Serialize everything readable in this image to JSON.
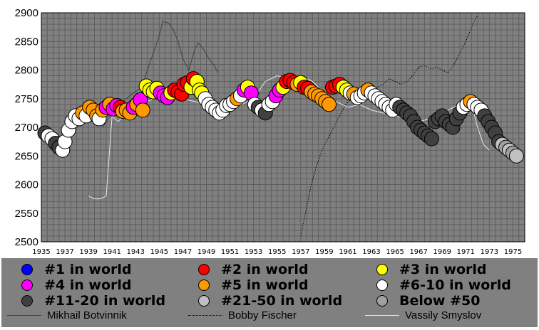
{
  "chart_data": {
    "type": "scatter",
    "ylim": [
      2500,
      2900
    ],
    "yticks": [
      "2900",
      "2850",
      "2800",
      "2750",
      "2700",
      "2650",
      "2600",
      "2550",
      "2500"
    ],
    "xlim": [
      1935,
      1976
    ],
    "xticks": [
      "1935",
      "1937",
      "1939",
      "1941",
      "1943",
      "1945",
      "1947",
      "1949",
      "1951",
      "1953",
      "1955",
      "1957",
      "1959",
      "1961",
      "1963",
      "1965",
      "1967",
      "1969",
      "1971",
      "1973",
      "1975"
    ],
    "grid": true,
    "legend_position": "bottom",
    "rank_categories": [
      {
        "key": "r1",
        "label": "#1 in world",
        "color": "#0000ff"
      },
      {
        "key": "r2",
        "label": "#2 in world",
        "color": "#ff0000"
      },
      {
        "key": "r3",
        "label": "#3 in world",
        "color": "#ffff00"
      },
      {
        "key": "r4",
        "label": "#4 in world",
        "color": "#ff00ff"
      },
      {
        "key": "r5",
        "label": "#5 in world",
        "color": "#ff9900"
      },
      {
        "key": "r610",
        "label": "#6-10 in world",
        "color": "#ffffff"
      },
      {
        "key": "r1120",
        "label": "#11-20 in world",
        "color": "#404040"
      },
      {
        "key": "r2150",
        "label": "#21-50 in world",
        "color": "#c0c0c0"
      },
      {
        "key": "rb50",
        "label": "Below #50",
        "color": "#a0a0a0"
      }
    ],
    "line_series": [
      {
        "name": "Mikhail Botvinnik",
        "style": "solid",
        "color": "#404040",
        "points": [
          [
            1940.2,
            2700
          ],
          [
            1940.8,
            2720
          ],
          [
            1941.5,
            2740
          ],
          [
            1942.2,
            2750
          ],
          [
            1942.8,
            2760
          ],
          [
            1943.5,
            2770
          ],
          [
            1944,
            2800
          ],
          [
            1944.5,
            2830
          ],
          [
            1945,
            2860
          ],
          [
            1945.3,
            2885
          ],
          [
            1945.8,
            2882
          ],
          [
            1946.2,
            2870
          ],
          [
            1946.6,
            2850
          ],
          [
            1947,
            2820
          ],
          [
            1947.5,
            2800
          ],
          [
            1948,
            2835
          ],
          [
            1948.3,
            2848
          ],
          [
            1948.8,
            2835
          ],
          [
            1949.2,
            2820
          ],
          [
            1949.6,
            2810
          ],
          [
            1950,
            2795
          ]
        ]
      },
      {
        "name": "Bobby Fischer",
        "style": "dotted",
        "color": "#000000",
        "points": [
          [
            1957,
            2510
          ],
          [
            1957.3,
            2540
          ],
          [
            1957.6,
            2570
          ],
          [
            1957.9,
            2600
          ],
          [
            1958.3,
            2630
          ],
          [
            1958.8,
            2660
          ],
          [
            1959.3,
            2680
          ],
          [
            1959.8,
            2700
          ],
          [
            1960.3,
            2720
          ],
          [
            1960.8,
            2740
          ],
          [
            1961.3,
            2750
          ],
          [
            1961.8,
            2760
          ],
          [
            1962.3,
            2760
          ],
          [
            1962.8,
            2755
          ],
          [
            1963.5,
            2770
          ],
          [
            1964,
            2775
          ],
          [
            1964.5,
            2785
          ],
          [
            1965,
            2780
          ],
          [
            1965.5,
            2775
          ],
          [
            1966,
            2780
          ],
          [
            1966.5,
            2790
          ],
          [
            1967,
            2805
          ],
          [
            1967.5,
            2808
          ],
          [
            1968,
            2802
          ],
          [
            1968.5,
            2805
          ],
          [
            1969,
            2800
          ],
          [
            1969.5,
            2795
          ],
          [
            1970,
            2810
          ],
          [
            1970.5,
            2830
          ],
          [
            1971,
            2850
          ],
          [
            1971.4,
            2870
          ],
          [
            1971.7,
            2885
          ],
          [
            1972,
            2895
          ]
        ]
      },
      {
        "name": "Vassily Smyslov",
        "style": "solid",
        "color": "#e8e8e8",
        "points": [
          [
            1939,
            2580
          ],
          [
            1939.5,
            2575
          ],
          [
            1940,
            2575
          ],
          [
            1940.5,
            2580
          ],
          [
            1941,
            2720
          ],
          [
            1941.5,
            2710
          ],
          [
            1942,
            2720
          ],
          [
            1942.5,
            2730
          ],
          [
            1943,
            2740
          ],
          [
            1944,
            2745
          ],
          [
            1945,
            2755
          ],
          [
            1946,
            2765
          ],
          [
            1947,
            2750
          ],
          [
            1948,
            2745
          ],
          [
            1949,
            2740
          ],
          [
            1950,
            2735
          ],
          [
            1951,
            2730
          ],
          [
            1952,
            2740
          ],
          [
            1953,
            2750
          ],
          [
            1954,
            2780
          ],
          [
            1955,
            2790
          ],
          [
            1956,
            2785
          ],
          [
            1957,
            2790
          ],
          [
            1958,
            2780
          ],
          [
            1959,
            2760
          ],
          [
            1960,
            2745
          ],
          [
            1961,
            2735
          ],
          [
            1962,
            2740
          ],
          [
            1963,
            2730
          ],
          [
            1964,
            2725
          ],
          [
            1965,
            2720
          ],
          [
            1966,
            2715
          ],
          [
            1967,
            2710
          ],
          [
            1968,
            2715
          ],
          [
            1969,
            2725
          ],
          [
            1970,
            2735
          ],
          [
            1971,
            2745
          ],
          [
            1971.5,
            2740
          ],
          [
            1972,
            2700
          ],
          [
            1972.5,
            2670
          ],
          [
            1973,
            2660
          ]
        ]
      }
    ],
    "points": [
      [
        1935.3,
        2690,
        "r1120"
      ],
      [
        1935.6,
        2685,
        "r610"
      ],
      [
        1935.9,
        2680,
        "r610"
      ],
      [
        1936.2,
        2672,
        "r1120"
      ],
      [
        1936.5,
        2665,
        "r1120"
      ],
      [
        1936.8,
        2660,
        "r610"
      ],
      [
        1937,
        2675,
        "r610"
      ],
      [
        1937.3,
        2695,
        "r610"
      ],
      [
        1937.6,
        2710,
        "r610"
      ],
      [
        1937.9,
        2720,
        "r610"
      ],
      [
        1938.2,
        2715,
        "r610"
      ],
      [
        1938.5,
        2725,
        "r5"
      ],
      [
        1938.8,
        2720,
        "r610"
      ],
      [
        1939.1,
        2735,
        "r5"
      ],
      [
        1939.4,
        2730,
        "r5"
      ],
      [
        1939.7,
        2720,
        "r5"
      ],
      [
        1939.9,
        2715,
        "r610"
      ],
      [
        1940.2,
        2730,
        "r5"
      ],
      [
        1940.5,
        2735,
        "r4"
      ],
      [
        1940.8,
        2740,
        "r5"
      ],
      [
        1941.1,
        2732,
        "r4"
      ],
      [
        1941.4,
        2738,
        "r4"
      ],
      [
        1941.7,
        2735,
        "r2"
      ],
      [
        1941.9,
        2728,
        "r5"
      ],
      [
        1942.2,
        2730,
        "r5"
      ],
      [
        1942.5,
        2725,
        "r5"
      ],
      [
        1942.8,
        2735,
        "r4"
      ],
      [
        1943.1,
        2740,
        "r5"
      ],
      [
        1943.4,
        2748,
        "r4"
      ],
      [
        1943.6,
        2730,
        "r5"
      ],
      [
        1943.9,
        2772,
        "r3"
      ],
      [
        1944.2,
        2765,
        "r3"
      ],
      [
        1944.5,
        2762,
        "r3"
      ],
      [
        1944.8,
        2768,
        "r3"
      ],
      [
        1945.1,
        2760,
        "r4"
      ],
      [
        1945.4,
        2755,
        "r4"
      ],
      [
        1945.7,
        2752,
        "r4"
      ],
      [
        1946,
        2760,
        "r3"
      ],
      [
        1946.3,
        2765,
        "r2"
      ],
      [
        1946.6,
        2762,
        "r2"
      ],
      [
        1946.9,
        2758,
        "r2"
      ],
      [
        1947.1,
        2775,
        "r2"
      ],
      [
        1947.4,
        2778,
        "r2"
      ],
      [
        1947.7,
        2770,
        "r3"
      ],
      [
        1947.9,
        2785,
        "r2"
      ],
      [
        1948.2,
        2780,
        "r3"
      ],
      [
        1948.4,
        2765,
        "r3"
      ],
      [
        1948.6,
        2760,
        "r3"
      ],
      [
        1948.9,
        2750,
        "r610"
      ],
      [
        1949.2,
        2740,
        "r610"
      ],
      [
        1949.5,
        2735,
        "r610"
      ],
      [
        1949.8,
        2730,
        "r610"
      ],
      [
        1950.1,
        2725,
        "r610"
      ],
      [
        1950.4,
        2730,
        "r610"
      ],
      [
        1950.7,
        2738,
        "r610"
      ],
      [
        1951,
        2740,
        "r610"
      ],
      [
        1951.3,
        2745,
        "r610"
      ],
      [
        1951.6,
        2750,
        "r5"
      ],
      [
        1951.9,
        2755,
        "r610"
      ],
      [
        1952.2,
        2765,
        "r4"
      ],
      [
        1952.5,
        2770,
        "r3"
      ],
      [
        1952.8,
        2760,
        "r4"
      ],
      [
        1953.1,
        2740,
        "r610"
      ],
      [
        1953.4,
        2735,
        "r1120"
      ],
      [
        1953.7,
        2730,
        "r610"
      ],
      [
        1954,
        2725,
        "r1120"
      ],
      [
        1954.3,
        2740,
        "r610"
      ],
      [
        1954.6,
        2745,
        "r610"
      ],
      [
        1954.9,
        2755,
        "r4"
      ],
      [
        1955.2,
        2765,
        "r4"
      ],
      [
        1955.5,
        2770,
        "r3"
      ],
      [
        1955.8,
        2780,
        "r2"
      ],
      [
        1956.1,
        2782,
        "r2"
      ],
      [
        1956.4,
        2778,
        "r2"
      ],
      [
        1956.7,
        2775,
        "r5"
      ],
      [
        1957,
        2778,
        "r3"
      ],
      [
        1957.3,
        2770,
        "r2"
      ],
      [
        1957.6,
        2768,
        "r2"
      ],
      [
        1957.9,
        2762,
        "r5"
      ],
      [
        1958.2,
        2758,
        "r5"
      ],
      [
        1958.5,
        2755,
        "r5"
      ],
      [
        1958.8,
        2750,
        "r5"
      ],
      [
        1959.1,
        2745,
        "r5"
      ],
      [
        1959.4,
        2740,
        "r5"
      ],
      [
        1959.7,
        2770,
        "r2"
      ],
      [
        1960,
        2772,
        "r2"
      ],
      [
        1960.3,
        2775,
        "r2"
      ],
      [
        1960.6,
        2770,
        "r3"
      ],
      [
        1960.9,
        2765,
        "r3"
      ],
      [
        1961.2,
        2760,
        "r610"
      ],
      [
        1961.5,
        2758,
        "r5"
      ],
      [
        1961.8,
        2752,
        "r610"
      ],
      [
        1962.1,
        2755,
        "r610"
      ],
      [
        1962.4,
        2760,
        "r610"
      ],
      [
        1962.7,
        2765,
        "r5"
      ],
      [
        1963,
        2760,
        "r610"
      ],
      [
        1963.3,
        2755,
        "r610"
      ],
      [
        1963.6,
        2750,
        "r610"
      ],
      [
        1963.9,
        2745,
        "r610"
      ],
      [
        1964.2,
        2740,
        "r610"
      ],
      [
        1964.5,
        2735,
        "r610"
      ],
      [
        1964.8,
        2730,
        "r610"
      ],
      [
        1965.1,
        2740,
        "r610"
      ],
      [
        1965.4,
        2735,
        "r1120"
      ],
      [
        1965.7,
        2730,
        "r1120"
      ],
      [
        1966,
        2725,
        "r1120"
      ],
      [
        1966.3,
        2720,
        "r1120"
      ],
      [
        1966.6,
        2710,
        "r1120"
      ],
      [
        1966.9,
        2700,
        "r1120"
      ],
      [
        1967.2,
        2695,
        "r1120"
      ],
      [
        1967.5,
        2690,
        "r1120"
      ],
      [
        1967.8,
        2685,
        "r1120"
      ],
      [
        1968.1,
        2680,
        "r1120"
      ],
      [
        1968.4,
        2710,
        "r1120"
      ],
      [
        1968.7,
        2715,
        "r1120"
      ],
      [
        1969,
        2720,
        "r1120"
      ],
      [
        1969.3,
        2710,
        "r1120"
      ],
      [
        1969.6,
        2705,
        "r1120"
      ],
      [
        1969.9,
        2700,
        "r1120"
      ],
      [
        1970.2,
        2715,
        "r1120"
      ],
      [
        1970.5,
        2725,
        "r1120"
      ],
      [
        1970.8,
        2735,
        "r610"
      ],
      [
        1971.1,
        2740,
        "r610"
      ],
      [
        1971.4,
        2745,
        "r5"
      ],
      [
        1971.7,
        2740,
        "r610"
      ],
      [
        1972,
        2735,
        "r610"
      ],
      [
        1972.3,
        2730,
        "r610"
      ],
      [
        1972.6,
        2720,
        "r1120"
      ],
      [
        1972.9,
        2710,
        "r1120"
      ],
      [
        1973.2,
        2700,
        "r1120"
      ],
      [
        1973.5,
        2690,
        "r1120"
      ],
      [
        1973.8,
        2675,
        "r1120"
      ],
      [
        1974.1,
        2670,
        "r2150"
      ],
      [
        1974.4,
        2665,
        "rb50"
      ],
      [
        1974.7,
        2660,
        "r2150"
      ],
      [
        1975,
        2655,
        "rb50"
      ],
      [
        1975.3,
        2650,
        "r2150"
      ]
    ]
  },
  "legend": {
    "items": [
      {
        "label": "#1 in world",
        "color": "#0000ff"
      },
      {
        "label": "#2 in world",
        "color": "#ff0000"
      },
      {
        "label": "#3 in world",
        "color": "#ffff00"
      },
      {
        "label": "#4 in world",
        "color": "#ff00ff"
      },
      {
        "label": "#5 in world",
        "color": "#ff9900"
      },
      {
        "label": "#6-10 in world",
        "color": "#ffffff"
      },
      {
        "label": "#11-20 in world",
        "color": "#404040"
      },
      {
        "label": "#21-50 in world",
        "color": "#c0c0c0"
      },
      {
        "label": "Below #50",
        "color": "#a0a0a0"
      }
    ],
    "lines": [
      {
        "label": "Mikhail Botvinnik",
        "style": "solid",
        "color": "#404040"
      },
      {
        "label": "Bobby Fischer",
        "style": "dotted",
        "color": "#000000"
      },
      {
        "label": "Vassily Smyslov",
        "style": "solid",
        "color": "#e8e8e8"
      }
    ]
  }
}
